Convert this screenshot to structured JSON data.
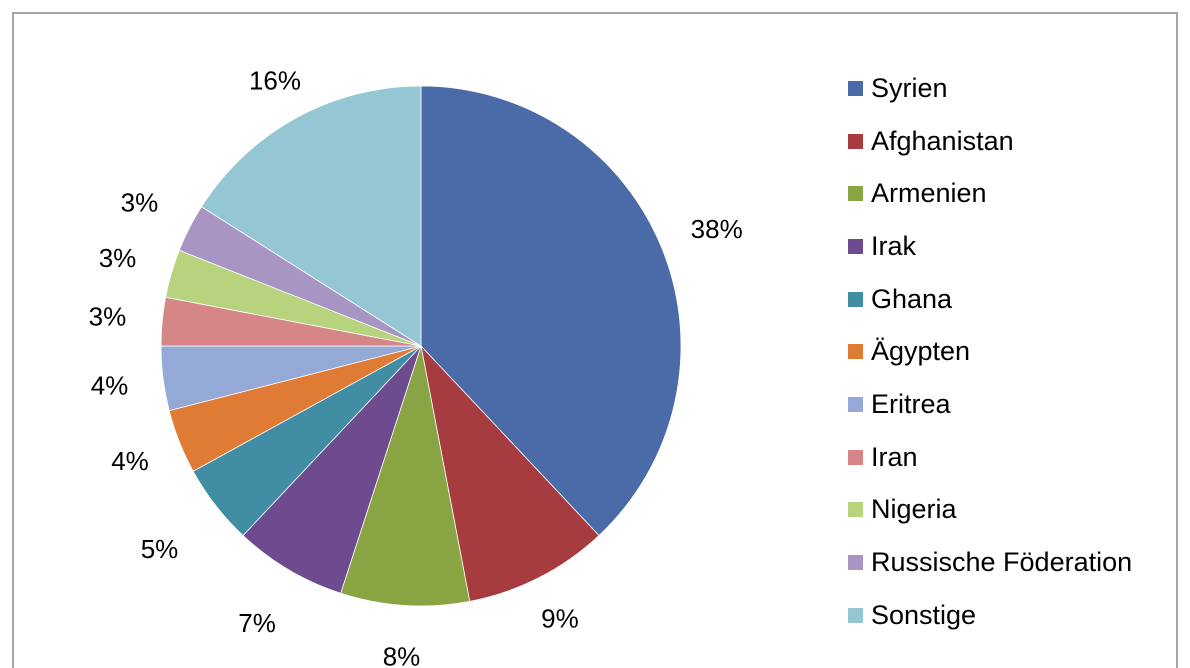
{
  "chart_data": {
    "type": "pie",
    "categories": [
      "Syrien",
      "Afghanistan",
      "Armenien",
      "Irak",
      "Ghana",
      "Ägypten",
      "Eritrea",
      "Iran",
      "Nigeria",
      "Russische Föderation",
      "Sonstige"
    ],
    "values": [
      38,
      9,
      8,
      7,
      5,
      4,
      4,
      3,
      3,
      3,
      16
    ],
    "labels": [
      "38%",
      "9%",
      "8%",
      "7%",
      "5%",
      "4%",
      "4%",
      "3%",
      "3%",
      "3%",
      "16%"
    ],
    "colors": [
      "#4a6aa8",
      "#a63c40",
      "#88a443",
      "#6d4b8e",
      "#418ea4",
      "#e07b35",
      "#95a9d6",
      "#d78688",
      "#b7d37e",
      "#a895c3",
      "#94c6d3"
    ],
    "start": "12 o'clock",
    "direction": "clockwise",
    "legend_position": "right"
  }
}
